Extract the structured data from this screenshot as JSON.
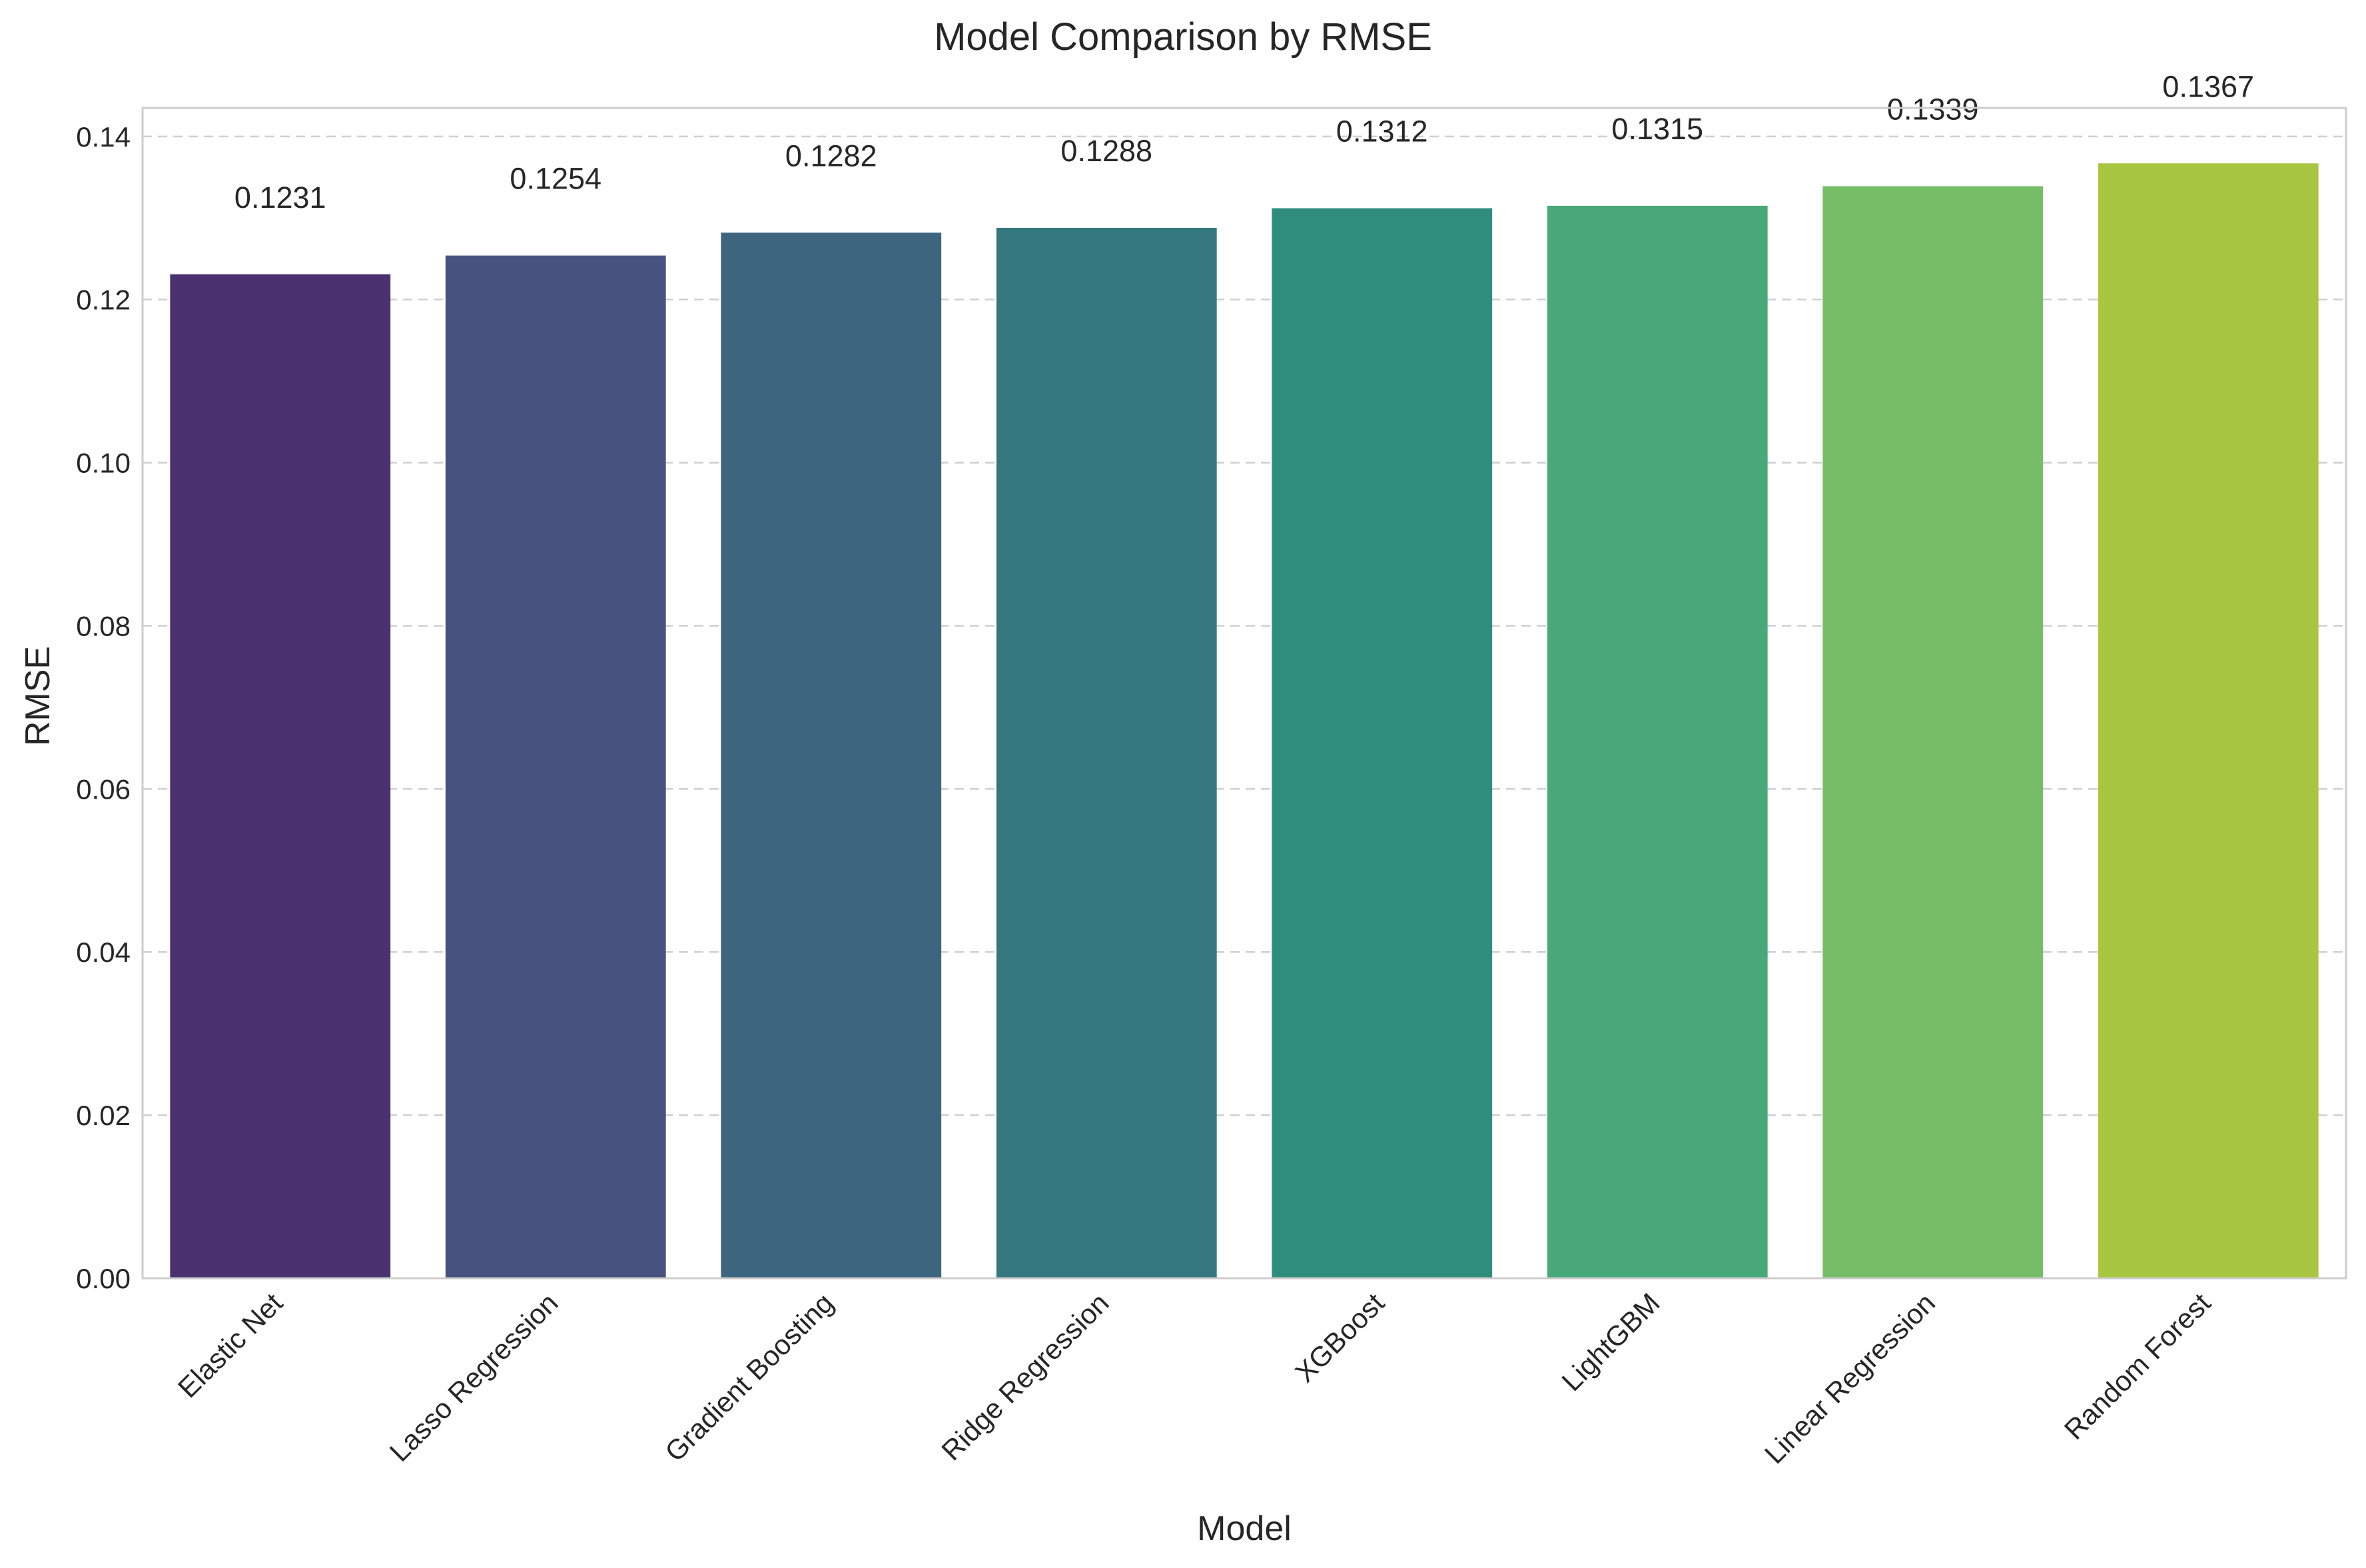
{
  "chart_data": {
    "type": "bar",
    "title": "Model Comparison by RMSE",
    "xlabel": "Model",
    "ylabel": "RMSE",
    "categories": [
      "Elastic Net",
      "Lasso Regression",
      "Gradient Boosting",
      "Ridge Regression",
      "XGBoost",
      "LightGBM",
      "Linear Regression",
      "Random Forest"
    ],
    "values": [
      0.1231,
      0.1254,
      0.1282,
      0.1288,
      0.1312,
      0.1315,
      0.1339,
      0.1367
    ],
    "value_labels": [
      "0.1231",
      "0.1254",
      "0.1282",
      "0.1288",
      "0.1312",
      "0.1315",
      "0.1339",
      "0.1367"
    ],
    "colors": [
      "#4b3170",
      "#48527f",
      "#3e6580",
      "#34777e",
      "#2e8d7c",
      "#48a878",
      "#76bd68",
      "#a8c63f"
    ],
    "ylim": [
      0,
      0.1435
    ],
    "yticks": [
      0.0,
      0.02,
      0.04,
      0.06,
      0.08,
      0.1,
      0.12,
      0.14
    ],
    "ytick_labels": [
      "0.00",
      "0.02",
      "0.04",
      "0.06",
      "0.08",
      "0.10",
      "0.12",
      "0.14"
    ],
    "grid": "y-dashed",
    "legend": "none"
  }
}
